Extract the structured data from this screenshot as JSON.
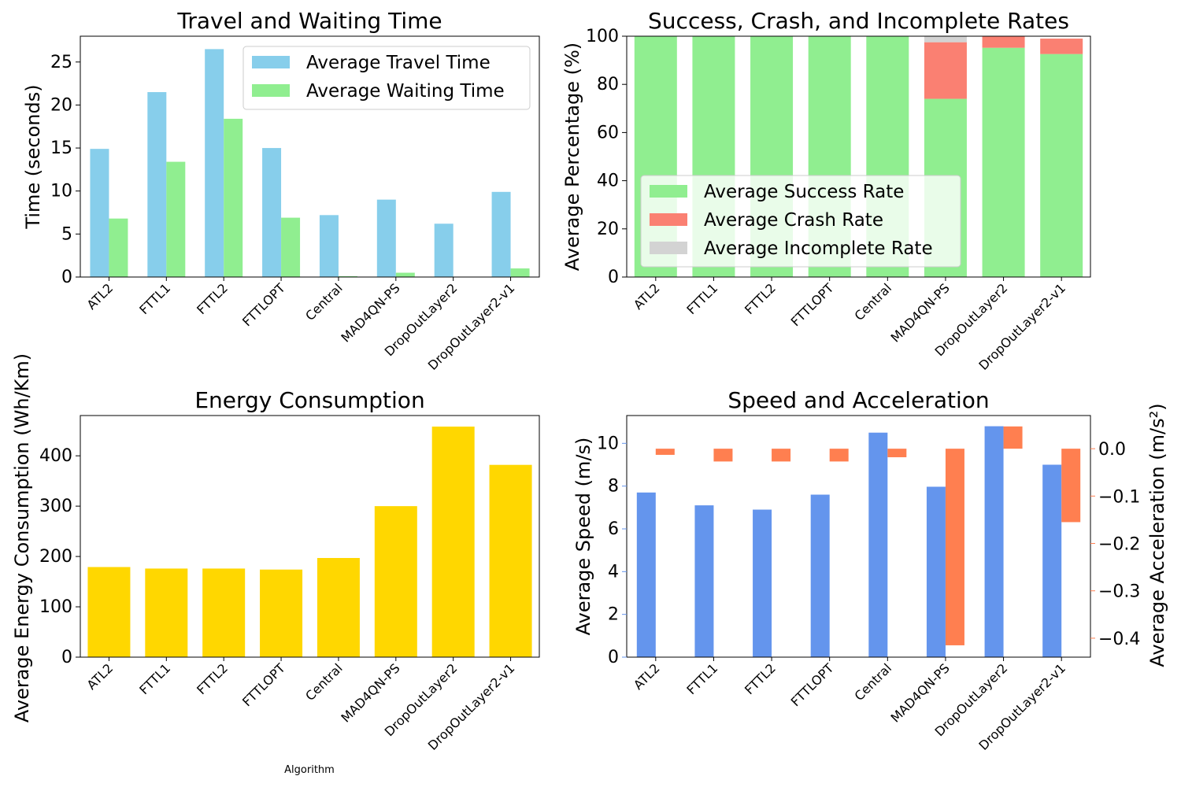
{
  "categories": [
    "ATL2",
    "FTTL1",
    "FTTL2",
    "FTTLOPT",
    "Central",
    "MAD4QN-PS",
    "DropOutLayer2",
    "DropOutLayer2-v1"
  ],
  "chart_data": [
    {
      "type": "bar",
      "title": "Travel and Waiting Time",
      "xlabel": "",
      "ylabel": "Time (seconds)",
      "ylim": [
        0,
        28
      ],
      "yticks": [
        0,
        5,
        10,
        15,
        20,
        25
      ],
      "grid": false,
      "legend_position": "top-right",
      "series": [
        {
          "name": "Average Travel Time",
          "color": "#87ceeb",
          "values": [
            14.9,
            21.5,
            26.5,
            15.0,
            7.2,
            9.0,
            6.2,
            9.9
          ]
        },
        {
          "name": "Average Waiting Time",
          "color": "#90ee90",
          "values": [
            6.8,
            13.4,
            18.4,
            6.9,
            0.1,
            0.5,
            0.0,
            1.0
          ]
        }
      ]
    },
    {
      "type": "bar",
      "stacked": true,
      "title": "Success, Crash, and Incomplete Rates",
      "xlabel": "",
      "ylabel": "Average Percentage (%)",
      "ylim": [
        0,
        100
      ],
      "yticks": [
        0,
        20,
        40,
        60,
        80,
        100
      ],
      "grid": false,
      "legend_position": "center-left",
      "series": [
        {
          "name": "Average Success Rate",
          "color": "#90ee90",
          "values": [
            100,
            100,
            100,
            100,
            100,
            74,
            95.2,
            92.6
          ]
        },
        {
          "name": "Average Crash Rate",
          "color": "#fa8072",
          "values": [
            0,
            0,
            0,
            0,
            0,
            23.5,
            4.8,
            6.4
          ]
        },
        {
          "name": "Average Incomplete Rate",
          "color": "#d3d3d3",
          "values": [
            0,
            0,
            0,
            0,
            0,
            2.5,
            0,
            0
          ]
        }
      ]
    },
    {
      "type": "bar",
      "title": "Energy Consumption",
      "xlabel": "Algorithm",
      "ylabel": "Average Energy Consumption (Wh/Km)",
      "ylim": [
        0,
        480
      ],
      "yticks": [
        0,
        100,
        200,
        300,
        400
      ],
      "grid": false,
      "series": [
        {
          "color": "#ffd700",
          "values": [
            179,
            176,
            176,
            174,
            197,
            300,
            458,
            382
          ]
        }
      ]
    },
    {
      "type": "bar",
      "title": "Speed and Acceleration",
      "xlabel": "",
      "ylabel": "Average Speed (m/s)",
      "ylabel_right": "Average Acceleration (m/s²)",
      "ylim": [
        0,
        11.3
      ],
      "ylim_right": [
        -0.44,
        0.07
      ],
      "yticks": [
        0,
        2,
        4,
        6,
        8,
        10
      ],
      "yticks_right": [
        0.0,
        -0.1,
        -0.2,
        -0.3,
        -0.4
      ],
      "ytick_labels_right": [
        "0.0",
        "−0.1",
        "−0.2",
        "−0.3",
        "−0.4"
      ],
      "grid": false,
      "series": [
        {
          "name": "Average Speed",
          "color": "#6495ed",
          "axis": "left",
          "values": [
            7.7,
            7.1,
            6.9,
            7.6,
            10.5,
            7.97,
            10.8,
            9.0
          ]
        },
        {
          "name": "Average Acceleration",
          "color": "#ff7f50",
          "axis": "right",
          "values": [
            -0.013,
            -0.027,
            -0.027,
            -0.027,
            -0.018,
            -0.415,
            0.047,
            -0.155
          ]
        }
      ]
    }
  ]
}
